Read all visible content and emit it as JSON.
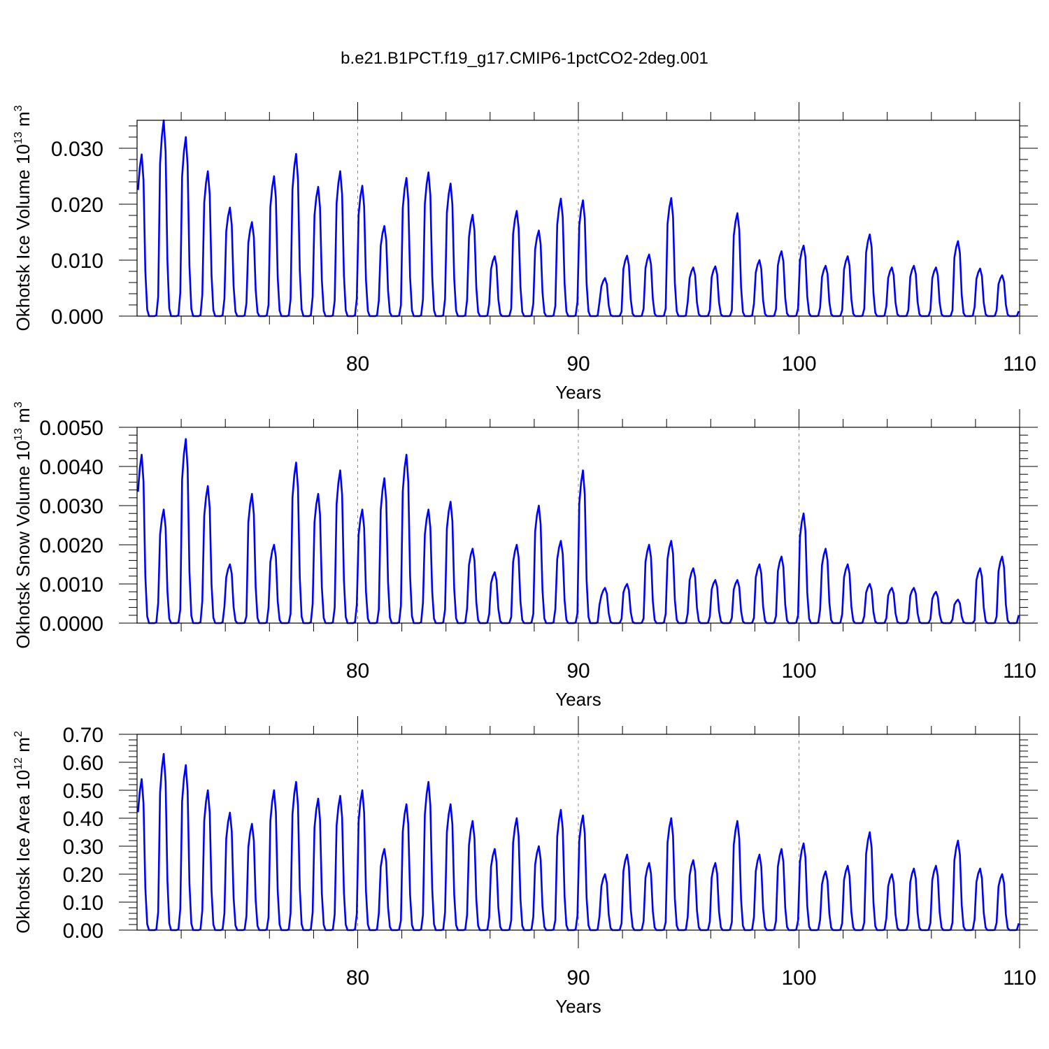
{
  "figure": {
    "title": "b.e21.B1PCT.f19_g17.CMIP6-1pctCO2-2deg.001",
    "line_color": "#0000ff",
    "grid_color": "#888888"
  },
  "chart_data": [
    {
      "type": "line",
      "name": "ice-volume",
      "ylabel": "Okhotsk Ice Volume 10",
      "ylabel_sup_exp": "13",
      "ylabel_unit": "m",
      "ylabel_sup_unit": "3",
      "xlabel": "Years",
      "xlim": [
        70.0,
        110.0
      ],
      "ylim": [
        0.0,
        0.035
      ],
      "yticks": [
        0.0,
        0.01,
        0.02,
        0.03
      ],
      "ytick_labels": [
        "0.000",
        "0.010",
        "0.020",
        "0.030"
      ],
      "xticks": [
        80,
        90,
        100,
        110
      ],
      "xtick_labels": [
        "80",
        "90",
        "100",
        "110"
      ],
      "grid_x": [
        80,
        90,
        100
      ],
      "series": [
        {
          "peaks": [
            0.0289,
            0.035,
            0.032,
            0.0259,
            0.0194,
            0.0168,
            0.025,
            0.029,
            0.0231,
            0.0259,
            0.0233,
            0.0161,
            0.0247,
            0.0257,
            0.0237,
            0.0181,
            0.0107,
            0.0188,
            0.0153,
            0.021,
            0.0207,
            0.0068,
            0.0108,
            0.011,
            0.0211,
            0.0087,
            0.0089,
            0.0184,
            0.01,
            0.0116,
            0.0126,
            0.009,
            0.0107,
            0.0146,
            0.0087,
            0.009,
            0.0087,
            0.0134,
            0.0085,
            0.0073
          ]
        }
      ]
    },
    {
      "type": "line",
      "name": "snow-volume",
      "ylabel": "Okhotsk Snow Volume 10",
      "ylabel_sup_exp": "13",
      "ylabel_unit": "m",
      "ylabel_sup_unit": "3",
      "xlabel": "Years",
      "xlim": [
        70.0,
        110.0
      ],
      "ylim": [
        0.0,
        0.005
      ],
      "yticks": [
        0.0,
        0.001,
        0.002,
        0.003,
        0.004,
        0.005
      ],
      "ytick_labels": [
        "0.0000",
        "0.0010",
        "0.0020",
        "0.0030",
        "0.0040",
        "0.0050"
      ],
      "xticks": [
        80,
        90,
        100,
        110
      ],
      "xtick_labels": [
        "80",
        "90",
        "100",
        "110"
      ],
      "grid_x": [
        80,
        90,
        100
      ],
      "series": [
        {
          "peaks": [
            0.0043,
            0.0029,
            0.0047,
            0.0035,
            0.0015,
            0.0033,
            0.002,
            0.0041,
            0.0033,
            0.0039,
            0.0029,
            0.0037,
            0.0043,
            0.0029,
            0.0031,
            0.0019,
            0.0013,
            0.002,
            0.003,
            0.0021,
            0.0039,
            0.0009,
            0.001,
            0.002,
            0.0021,
            0.0014,
            0.0011,
            0.0011,
            0.0015,
            0.0017,
            0.0028,
            0.0019,
            0.0015,
            0.001,
            0.0009,
            0.0009,
            0.0008,
            0.0006,
            0.0014,
            0.0017
          ]
        }
      ]
    },
    {
      "type": "line",
      "name": "ice-area",
      "ylabel": "Okhotsk Ice Area 10",
      "ylabel_sup_exp": "12",
      "ylabel_unit": "m",
      "ylabel_sup_unit": "2",
      "xlabel": "Years",
      "xlim": [
        70.0,
        110.0
      ],
      "ylim": [
        0.0,
        0.7
      ],
      "yticks": [
        0.0,
        0.1,
        0.2,
        0.3,
        0.4,
        0.5,
        0.6,
        0.7
      ],
      "ytick_labels": [
        "0.00",
        "0.10",
        "0.20",
        "0.30",
        "0.40",
        "0.50",
        "0.60",
        "0.70"
      ],
      "xticks": [
        80,
        90,
        100,
        110
      ],
      "xtick_labels": [
        "80",
        "90",
        "100",
        "110"
      ],
      "grid_x": [
        80,
        90,
        100
      ],
      "series": [
        {
          "peaks": [
            0.54,
            0.63,
            0.59,
            0.5,
            0.42,
            0.38,
            0.5,
            0.53,
            0.47,
            0.48,
            0.5,
            0.29,
            0.45,
            0.53,
            0.45,
            0.39,
            0.29,
            0.4,
            0.3,
            0.43,
            0.41,
            0.2,
            0.27,
            0.24,
            0.4,
            0.25,
            0.24,
            0.39,
            0.27,
            0.29,
            0.31,
            0.21,
            0.23,
            0.35,
            0.2,
            0.22,
            0.23,
            0.32,
            0.22,
            0.2
          ]
        }
      ]
    }
  ]
}
